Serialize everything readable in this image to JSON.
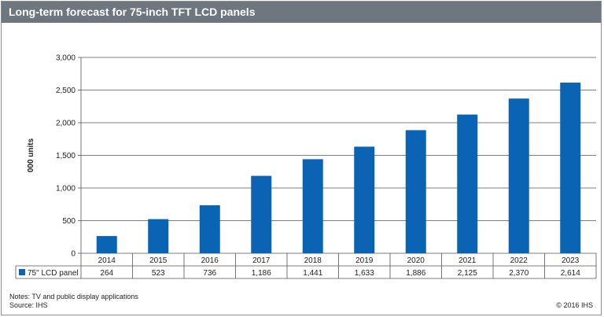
{
  "title": "Long-term forecast for 75-inch TFT LCD panels",
  "colors": {
    "bar": "#0a63b3",
    "title_bar": "#6e7680",
    "grid": "#555555"
  },
  "chart_data": {
    "type": "bar",
    "categories": [
      "2014",
      "2015",
      "2016",
      "2017",
      "2018",
      "2019",
      "2020",
      "2021",
      "2022",
      "2023"
    ],
    "series": [
      {
        "name": "75\" LCD panel",
        "values": [
          264,
          523,
          736,
          1186,
          1441,
          1633,
          1886,
          2125,
          2370,
          2614
        ]
      }
    ],
    "value_labels": [
      "264",
      "523",
      "736",
      "1,186",
      "1,441",
      "1,633",
      "1,886",
      "2,125",
      "2,370",
      "2,614"
    ],
    "ylabel": "000 units",
    "ylim": [
      0,
      3000
    ],
    "yticks": [
      0,
      500,
      1000,
      1500,
      2000,
      2500,
      3000
    ],
    "ytick_labels": [
      "0",
      "500",
      "1,000",
      "1,500",
      "2,000",
      "2,500",
      "3,000"
    ],
    "grid": true,
    "data_table": true
  },
  "notes": [
    "Notes: TV and public display applications",
    "Source: IHS"
  ],
  "copyright": "© 2016 IHS"
}
